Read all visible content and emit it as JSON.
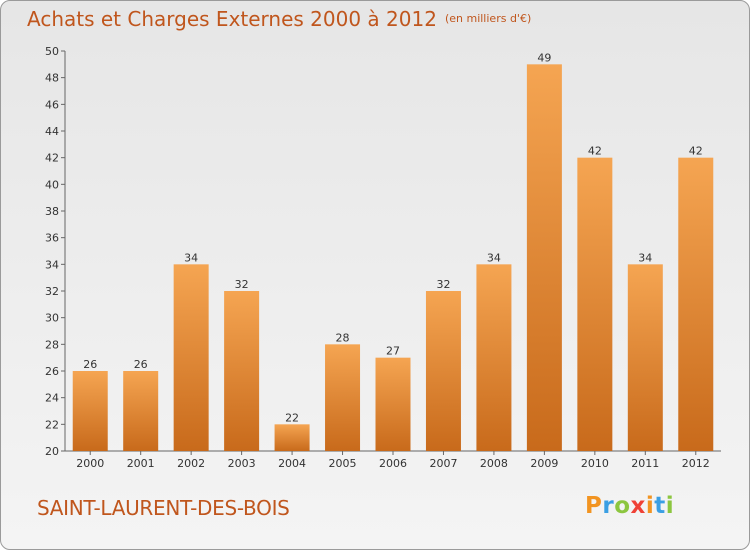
{
  "title": "Achats et Charges Externes 2000 à 2012",
  "subtitle": "(en milliers d'€)",
  "commune": "SAINT-LAURENT-DES-BOIS",
  "logo": {
    "letters": [
      "P",
      "r",
      "o",
      "x",
      "i",
      "t",
      "i"
    ],
    "colors": [
      "#f29421",
      "#3b9fe3",
      "#8cc63f",
      "#ef4136",
      "#f29421",
      "#3b9fe3",
      "#8cc63f"
    ]
  },
  "colors": {
    "bar_top": "#f5a552",
    "bar_bottom": "#c86a1b",
    "title": "#c0561d"
  },
  "chart_data": {
    "type": "bar",
    "title": "Achats et Charges Externes 2000 à 2012",
    "subtitle": "(en milliers d'€)",
    "categories": [
      "2000",
      "2001",
      "2002",
      "2003",
      "2004",
      "2005",
      "2006",
      "2007",
      "2008",
      "2009",
      "2010",
      "2011",
      "2012"
    ],
    "values": [
      26,
      26,
      34,
      32,
      22,
      28,
      27,
      32,
      34,
      49,
      42,
      34,
      42
    ],
    "yticks": [
      20,
      22,
      24,
      26,
      28,
      30,
      32,
      34,
      36,
      38,
      40,
      42,
      44,
      46,
      48,
      50
    ],
    "ylim": [
      20,
      50
    ],
    "grid": false,
    "legend": "none"
  }
}
